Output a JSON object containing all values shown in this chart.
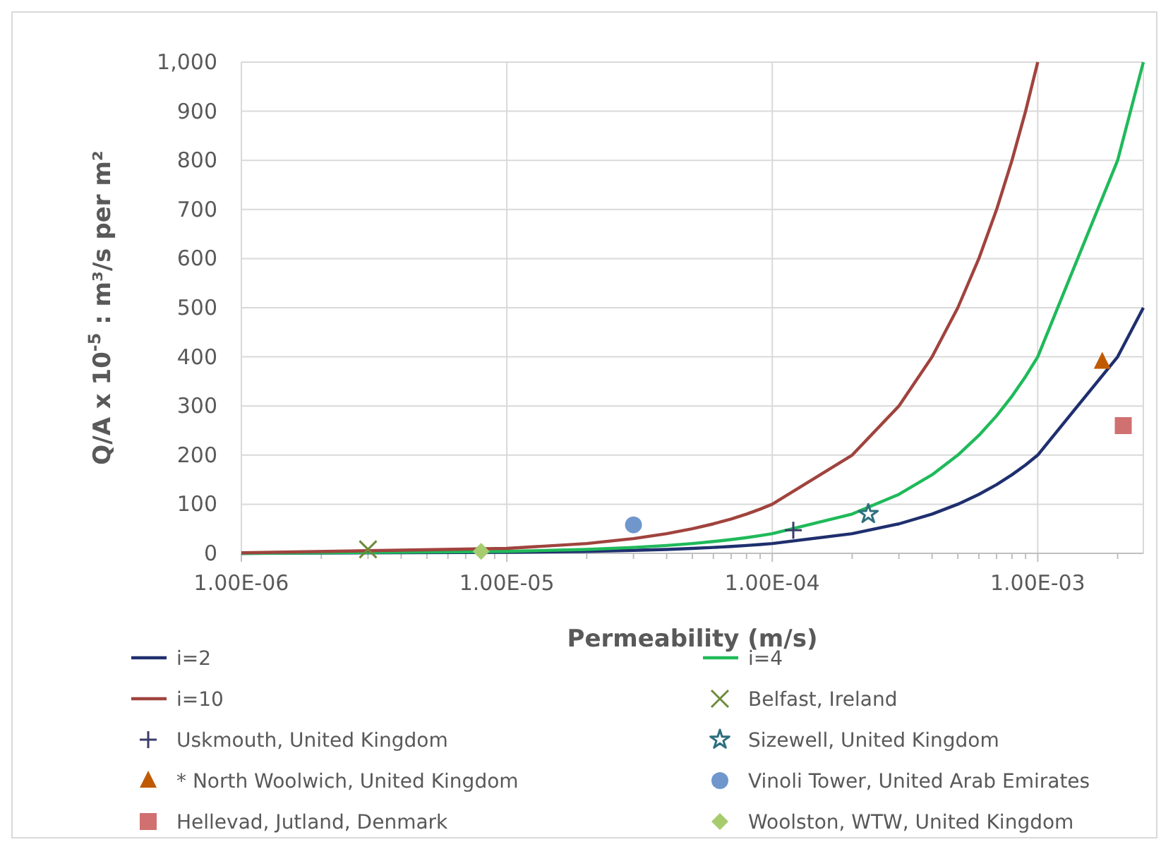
{
  "chart_data": {
    "type": "line",
    "xlabel": "Permeability (m/s)",
    "ylabel": "Q/A  x 10$^{-5}$ : m³/s per m²",
    "log": "x",
    "grid": true,
    "legend": "bottom",
    "xlim": [
      1e-06,
      0.0025
    ],
    "ylim": [
      0,
      1000
    ],
    "xticks": [
      {
        "value": 1e-06,
        "label": "1.00E-06"
      },
      {
        "value": 2e-06,
        "label": null
      },
      {
        "value": 3e-06,
        "label": null
      },
      {
        "value": 4e-06,
        "label": null
      },
      {
        "value": 5e-06,
        "label": null
      },
      {
        "value": 6e-06,
        "label": null
      },
      {
        "value": 7e-06,
        "label": null
      },
      {
        "value": 8e-06,
        "label": null
      },
      {
        "value": 9e-06,
        "label": null
      },
      {
        "value": 1e-05,
        "label": "1.00E-05"
      },
      {
        "value": 2e-05,
        "label": null
      },
      {
        "value": 3e-05,
        "label": null
      },
      {
        "value": 4e-05,
        "label": null
      },
      {
        "value": 5e-05,
        "label": null
      },
      {
        "value": 6e-05,
        "label": null
      },
      {
        "value": 7e-05,
        "label": null
      },
      {
        "value": 8e-05,
        "label": null
      },
      {
        "value": 9e-05,
        "label": null
      },
      {
        "value": 0.0001,
        "label": "1.00E-04"
      },
      {
        "value": 0.0002,
        "label": null
      },
      {
        "value": 0.0003,
        "label": null
      },
      {
        "value": 0.0004,
        "label": null
      },
      {
        "value": 0.0005,
        "label": null
      },
      {
        "value": 0.0006,
        "label": null
      },
      {
        "value": 0.0007,
        "label": null
      },
      {
        "value": 0.0008,
        "label": null
      },
      {
        "value": 0.0009,
        "label": null
      },
      {
        "value": 0.001,
        "label": "1.00E-03"
      },
      {
        "value": 0.002,
        "label": null
      }
    ],
    "yticks": [
      0,
      100,
      200,
      300,
      400,
      500,
      600,
      700,
      800,
      900,
      {
        "value": 1000,
        "label": "1,000"
      }
    ],
    "series": [
      {
        "name": "i=2",
        "color": "#1f2f6e",
        "marker": "none",
        "x": [
          1e-06,
          1e-05,
          2e-05,
          3e-05,
          4e-05,
          5e-05,
          6e-05,
          7e-05,
          8e-05,
          9e-05,
          0.0001,
          0.0002,
          0.0003,
          0.0004,
          0.0005,
          0.0006,
          0.0007,
          0.0008,
          0.0009,
          0.001,
          0.002,
          0.0025
        ],
        "values": [
          0,
          2,
          4,
          6,
          8,
          10,
          12,
          14,
          16,
          18,
          20,
          40,
          60,
          80,
          100,
          120,
          140,
          160,
          180,
          200,
          400,
          500
        ]
      },
      {
        "name": "i=4",
        "color": "#1fba5a",
        "marker": "none",
        "x": [
          1e-06,
          1e-05,
          2e-05,
          3e-05,
          4e-05,
          5e-05,
          6e-05,
          7e-05,
          8e-05,
          9e-05,
          0.0001,
          0.0002,
          0.0003,
          0.0004,
          0.0005,
          0.0006,
          0.0007,
          0.0008,
          0.0009,
          0.001,
          0.002,
          0.0025
        ],
        "values": [
          0,
          4,
          8,
          12,
          16,
          20,
          24,
          28,
          32,
          36,
          40,
          80,
          120,
          160,
          200,
          240,
          280,
          320,
          360,
          400,
          800,
          1000
        ]
      },
      {
        "name": "i=10",
        "color": "#a0433e",
        "marker": "none",
        "x": [
          1e-06,
          1e-05,
          2e-05,
          3e-05,
          4e-05,
          5e-05,
          6e-05,
          7e-05,
          8e-05,
          9e-05,
          0.0001,
          0.0002,
          0.0003,
          0.0004,
          0.0005,
          0.0006,
          0.0007,
          0.0008,
          0.0009,
          0.001
        ],
        "values": [
          1,
          10,
          20,
          30,
          40,
          50,
          60,
          70,
          80,
          90,
          100,
          200,
          300,
          400,
          500,
          600,
          700,
          800,
          900,
          1000
        ]
      },
      {
        "name": "Belfast, Ireland",
        "type": "scatter",
        "color": "#6f8a3a",
        "marker": "cross",
        "x": [
          3e-06
        ],
        "values": [
          8
        ]
      },
      {
        "name": "Uskmouth, United Kingdom",
        "type": "scatter",
        "color": "#3b3b6b",
        "marker": "plus",
        "x": [
          0.00012
        ],
        "values": [
          47
        ]
      },
      {
        "name": "Sizewell, United Kingdom",
        "type": "scatter",
        "color": "#2e6f7f",
        "marker": "star",
        "x": [
          0.00023
        ],
        "values": [
          80
        ]
      },
      {
        "name": "* North Woolwich, United Kingdom",
        "type": "scatter",
        "color": "#c05a00",
        "marker": "triangle",
        "x": [
          0.00175
        ],
        "values": [
          390
        ]
      },
      {
        "name": "Vinoli Tower, United Arab Emirates",
        "type": "scatter",
        "color": "#6f97cc",
        "marker": "circle",
        "x": [
          3e-05
        ],
        "values": [
          58
        ]
      },
      {
        "name": "Hellevad, Jutland, Denmark",
        "type": "scatter",
        "color": "#d07070",
        "marker": "square",
        "x": [
          0.0021
        ],
        "values": [
          260
        ]
      },
      {
        "name": "Woolston, WTW, United Kingdom",
        "type": "scatter",
        "color": "#a6cc6e",
        "marker": "diamond",
        "x": [
          8e-06
        ],
        "values": [
          4
        ]
      }
    ]
  }
}
